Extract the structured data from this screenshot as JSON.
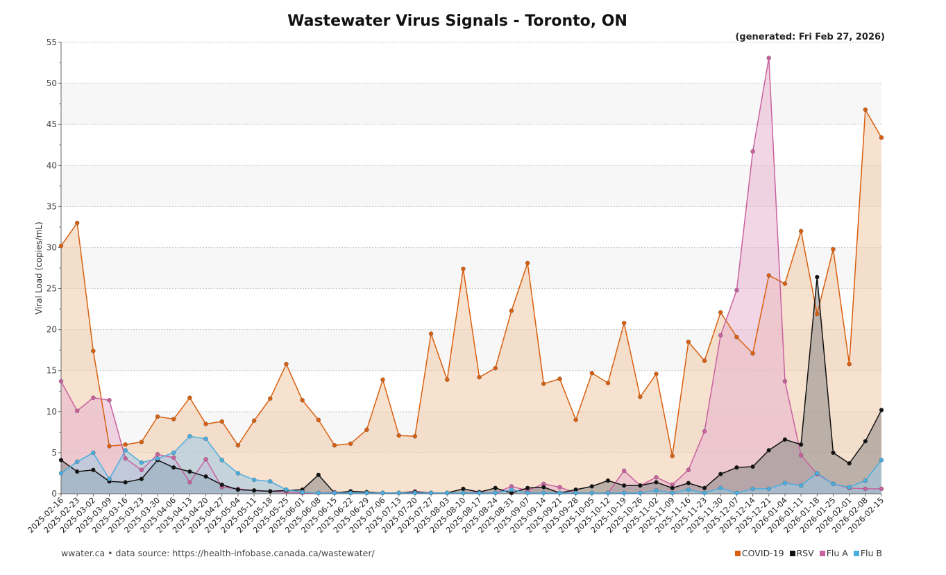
{
  "chart_data": {
    "type": "area",
    "title": "Wastewater Virus Signals - Toronto, ON",
    "subtitle": "(generated: Fri Feb 27, 2026)",
    "xlabel": "",
    "ylabel": "Viral Load (copies/mL)",
    "ylim": [
      0,
      55
    ],
    "yticks": [
      0,
      5,
      10,
      15,
      20,
      25,
      30,
      35,
      40,
      45,
      50,
      55
    ],
    "grid": true,
    "legend_position": "bottom-right",
    "x": [
      "2025-02-16",
      "2025-02-23",
      "2025-03-02",
      "2025-03-09",
      "2025-03-16",
      "2025-03-23",
      "2025-03-30",
      "2025-04-06",
      "2025-04-13",
      "2025-04-20",
      "2025-04-27",
      "2025-05-04",
      "2025-05-11",
      "2025-05-18",
      "2025-05-25",
      "2025-06-01",
      "2025-06-08",
      "2025-06-15",
      "2025-06-22",
      "2025-06-29",
      "2025-07-06",
      "2025-07-13",
      "2025-07-20",
      "2025-07-27",
      "2025-08-03",
      "2025-08-10",
      "2025-08-17",
      "2025-08-24",
      "2025-08-31",
      "2025-09-07",
      "2025-09-14",
      "2025-09-21",
      "2025-09-28",
      "2025-10-05",
      "2025-10-12",
      "2025-10-19",
      "2025-10-26",
      "2025-11-02",
      "2025-11-09",
      "2025-11-16",
      "2025-11-23",
      "2025-11-30",
      "2025-12-07",
      "2025-12-14",
      "2025-12-21",
      "2026-01-04",
      "2026-01-11",
      "2026-01-18",
      "2026-01-25",
      "2026-02-01",
      "2026-02-08",
      "2026-02-15"
    ],
    "series": [
      {
        "name": "COVID-19",
        "color": "#d95f0e",
        "fill": "#f0c9a8",
        "values": [
          30.2,
          33.0,
          17.4,
          5.8,
          6.0,
          6.3,
          9.4,
          9.1,
          11.7,
          8.5,
          8.8,
          5.9,
          8.9,
          11.6,
          15.8,
          11.4,
          9.0,
          5.9,
          6.1,
          7.8,
          13.9,
          7.1,
          7.0,
          19.5,
          13.9,
          27.4,
          14.2,
          15.3,
          22.3,
          28.1,
          13.4,
          14.0,
          9.0,
          14.7,
          13.5,
          20.8,
          11.8,
          14.6,
          4.6,
          18.5,
          16.2,
          22.1,
          19.1,
          17.1,
          26.6,
          25.6,
          32.0,
          21.9,
          29.8,
          15.8,
          46.8,
          43.4
        ]
      },
      {
        "name": "Flu A",
        "color": "#c9609f",
        "fill": "#e8b4cf",
        "values": [
          13.7,
          10.1,
          11.7,
          11.4,
          4.3,
          2.9,
          4.8,
          4.4,
          1.4,
          4.2,
          0.8,
          0.6,
          0.4,
          0.3,
          0.2,
          0.1,
          0.1,
          0.2,
          0.1,
          0.1,
          0.1,
          0.1,
          0.3,
          0.1,
          0.1,
          0.1,
          0.2,
          0.1,
          0.9,
          0.4,
          1.2,
          0.8,
          0.1,
          0.1,
          0.1,
          2.8,
          1.0,
          2.0,
          1.1,
          2.9,
          7.6,
          19.3,
          24.8,
          41.7,
          53.1,
          13.7,
          4.7,
          2.4,
          1.2,
          0.7,
          0.6,
          0.6
        ]
      },
      {
        "name": "RSV",
        "color": "#111111",
        "fill": "#8a8a8a",
        "values": [
          4.1,
          2.7,
          2.9,
          1.5,
          1.4,
          1.8,
          4.1,
          3.2,
          2.7,
          2.1,
          1.1,
          0.5,
          0.4,
          0.3,
          0.4,
          0.5,
          2.3,
          0.1,
          0.3,
          0.2,
          0.1,
          0.1,
          0.2,
          0.1,
          0.1,
          0.6,
          0.2,
          0.7,
          0.1,
          0.7,
          0.8,
          0.1,
          0.5,
          0.9,
          1.6,
          1.0,
          1.0,
          1.4,
          0.7,
          1.3,
          0.7,
          2.4,
          3.2,
          3.3,
          5.3,
          6.6,
          6.0,
          26.4,
          5.0,
          3.7,
          6.4,
          10.2
        ]
      },
      {
        "name": "Flu B",
        "color": "#4aaee0",
        "fill": "#9ccbe6",
        "values": [
          2.5,
          3.9,
          5.0,
          1.8,
          5.3,
          3.8,
          4.3,
          5.0,
          7.0,
          6.7,
          4.1,
          2.5,
          1.7,
          1.5,
          0.5,
          0.2,
          0.1,
          0.1,
          0.1,
          0.1,
          0.1,
          0.1,
          0.1,
          0.1,
          0.1,
          0.1,
          0.1,
          0.1,
          0.5,
          0.1,
          0.1,
          0.1,
          0.1,
          0.1,
          0.1,
          0.1,
          0.1,
          0.4,
          0.1,
          0.5,
          0.1,
          0.7,
          0.1,
          0.6,
          0.6,
          1.3,
          1.0,
          2.5,
          1.2,
          0.8,
          1.6,
          4.1
        ]
      }
    ],
    "legend_order": [
      "COVID-19",
      "RSV",
      "Flu A",
      "Flu B"
    ]
  },
  "footer": {
    "source": "wwater.ca • data source: https://health-infobase.canada.ca/wastewater/"
  }
}
